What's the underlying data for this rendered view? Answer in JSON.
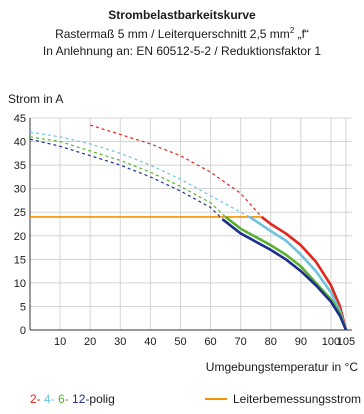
{
  "chart_data": {
    "type": "line",
    "title": "Strombelastbarkeitskurve",
    "subtitle_line1_prefix": "Rastermaß 5 mm / Leiterquerschnitt 2,5 mm",
    "subtitle_line1_sup": "2",
    "subtitle_line1_suffix": " „f“",
    "subtitle_line2": "In Anlehnung an: EN 60512-5-2 / Reduktionsfaktor 1",
    "ylabel": "Strom in A",
    "xlabel": "Umgebungstemperatur in °C",
    "xlim": [
      0,
      107
    ],
    "ylim": [
      0,
      45
    ],
    "xticks": [
      10,
      20,
      30,
      40,
      50,
      60,
      70,
      80,
      90,
      100,
      105
    ],
    "yticks": [
      0,
      5,
      10,
      15,
      20,
      25,
      30,
      35,
      40,
      45
    ],
    "grid": true,
    "series": [
      {
        "name": "2-polig",
        "color": "#e2261c",
        "dashed": {
          "x": [
            20,
            30,
            40,
            50,
            60,
            70,
            77
          ],
          "y": [
            43.5,
            41.5,
            39.5,
            37,
            33.5,
            29,
            24
          ]
        },
        "solid": {
          "x": [
            77,
            80,
            85,
            90,
            95,
            100,
            103,
            105
          ],
          "y": [
            24,
            22.5,
            20.5,
            18,
            14.5,
            9.5,
            5,
            0
          ]
        }
      },
      {
        "name": "4-polig",
        "color": "#6fc3df",
        "dashed": {
          "x": [
            0,
            10,
            20,
            30,
            40,
            50,
            60,
            70,
            73
          ],
          "y": [
            42,
            41,
            39.5,
            37.5,
            35,
            32,
            28.5,
            25,
            24
          ]
        },
        "solid": {
          "x": [
            73,
            80,
            85,
            90,
            95,
            100,
            103,
            105
          ],
          "y": [
            24,
            21,
            19,
            16,
            12.5,
            8,
            4,
            0
          ]
        }
      },
      {
        "name": "6-polig",
        "color": "#5ab030",
        "dashed": {
          "x": [
            0,
            10,
            20,
            30,
            40,
            50,
            60,
            65
          ],
          "y": [
            41,
            40,
            38,
            36,
            33.5,
            30.5,
            27,
            24
          ]
        },
        "solid": {
          "x": [
            65,
            70,
            80,
            85,
            90,
            95,
            100,
            103,
            105
          ],
          "y": [
            24,
            21.5,
            18,
            16,
            13.5,
            10,
            6.5,
            3.5,
            0
          ]
        }
      },
      {
        "name": "12-polig",
        "color": "#1d2f8c",
        "dashed": {
          "x": [
            0,
            10,
            20,
            30,
            40,
            50,
            60,
            64
          ],
          "y": [
            40.5,
            39,
            37,
            35,
            32.5,
            29.5,
            26,
            23.5
          ]
        },
        "solid": {
          "x": [
            64,
            70,
            80,
            85,
            90,
            95,
            100,
            103,
            105
          ],
          "y": [
            23.5,
            20.5,
            17,
            15,
            12.5,
            9.5,
            6,
            3,
            0
          ]
        }
      }
    ],
    "rated_current": {
      "name": "Leiterbemessungsstrom",
      "color": "#f39200",
      "x": [
        0,
        77
      ],
      "y": [
        24,
        24
      ]
    }
  },
  "legend": {
    "polig_items": [
      {
        "text": "2-",
        "color": "#e2261c"
      },
      {
        "text": " 4-",
        "color": "#6fc3df"
      },
      {
        "text": " 6-",
        "color": "#5ab030"
      },
      {
        "text": " 12-",
        "color": "#1d2f8c"
      },
      {
        "text": "polig",
        "color": "#1a1a1a"
      }
    ],
    "rated_label": "Leiterbemessungsstrom"
  }
}
